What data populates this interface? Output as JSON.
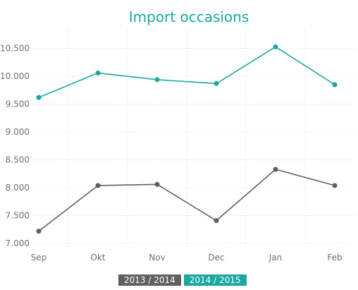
{
  "chart_data": {
    "type": "line",
    "title": "Import occasions",
    "categories": [
      "Sep",
      "Okt",
      "Nov",
      "Dec",
      "Jan",
      "Feb"
    ],
    "y_ticks": [
      "7.000",
      "7.500",
      "8.000",
      "8.500",
      "9.000",
      "9.500",
      "10.000",
      "10.500"
    ],
    "ylim": [
      7000,
      10800
    ],
    "grid": true,
    "legend_position": "bottom",
    "series": [
      {
        "name": "2013 / 2014",
        "color": "#606060",
        "values": [
          7220,
          8040,
          8060,
          7410,
          8330,
          8040
        ]
      },
      {
        "name": "2014 / 2015",
        "color": "#1aa89f",
        "values": [
          9620,
          10060,
          9940,
          9870,
          10530,
          9850
        ]
      }
    ]
  }
}
